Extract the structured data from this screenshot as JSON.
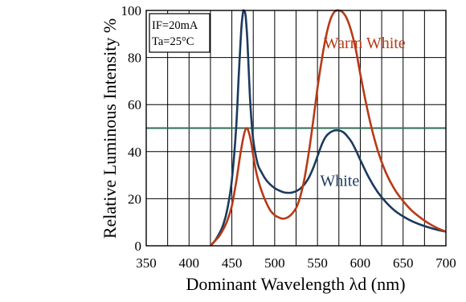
{
  "chart_data": {
    "type": "line",
    "title": "",
    "xlabel": "Dominant Wavelength λd (nm)",
    "ylabel": "Relative Luminous Intensity %",
    "xlim": [
      350,
      700
    ],
    "ylim": [
      0,
      100
    ],
    "x_ticks": [
      350,
      400,
      450,
      500,
      550,
      600,
      650,
      700
    ],
    "y_ticks": [
      0,
      20,
      40,
      60,
      80,
      100
    ],
    "x_grid_step": 25,
    "grid": true,
    "conditions": [
      "IF=20mA",
      "Ta=25°C"
    ],
    "reference_lines": [
      {
        "y": 50,
        "color": "#2e6e55"
      }
    ],
    "series": [
      {
        "name": "White",
        "color": "#1c3a5e",
        "points": [
          [
            425,
            0
          ],
          [
            430,
            2
          ],
          [
            435,
            5
          ],
          [
            440,
            9
          ],
          [
            445,
            16
          ],
          [
            450,
            28
          ],
          [
            455,
            50
          ],
          [
            458,
            72
          ],
          [
            461,
            92
          ],
          [
            463,
            99
          ],
          [
            464,
            100
          ],
          [
            466,
            98
          ],
          [
            468,
            88
          ],
          [
            470,
            72
          ],
          [
            472,
            58
          ],
          [
            475,
            45
          ],
          [
            480,
            35
          ],
          [
            485,
            31
          ],
          [
            490,
            28
          ],
          [
            495,
            26
          ],
          [
            500,
            24.5
          ],
          [
            505,
            23.5
          ],
          [
            510,
            22.8
          ],
          [
            515,
            22.5
          ],
          [
            520,
            22.6
          ],
          [
            525,
            23.2
          ],
          [
            530,
            24.3
          ],
          [
            535,
            26.2
          ],
          [
            540,
            29
          ],
          [
            545,
            33
          ],
          [
            550,
            38
          ],
          [
            555,
            43
          ],
          [
            560,
            46.5
          ],
          [
            565,
            48.2
          ],
          [
            570,
            49
          ],
          [
            575,
            49
          ],
          [
            580,
            48.3
          ],
          [
            585,
            46.5
          ],
          [
            590,
            44
          ],
          [
            595,
            40.5
          ],
          [
            600,
            36.5
          ],
          [
            610,
            29
          ],
          [
            620,
            23
          ],
          [
            630,
            18.5
          ],
          [
            640,
            15
          ],
          [
            650,
            12.5
          ],
          [
            660,
            10.5
          ],
          [
            670,
            9
          ],
          [
            680,
            7.8
          ],
          [
            690,
            6.8
          ],
          [
            700,
            6
          ]
        ]
      },
      {
        "name": "Warm White",
        "color": "#b83a18",
        "points": [
          [
            425,
            0
          ],
          [
            430,
            2
          ],
          [
            435,
            4
          ],
          [
            440,
            7
          ],
          [
            445,
            11
          ],
          [
            450,
            17
          ],
          [
            455,
            27
          ],
          [
            460,
            39
          ],
          [
            464,
            47
          ],
          [
            467,
            50
          ],
          [
            470,
            48
          ],
          [
            473,
            43
          ],
          [
            476,
            36
          ],
          [
            480,
            29
          ],
          [
            485,
            23
          ],
          [
            490,
            18.5
          ],
          [
            495,
            15
          ],
          [
            500,
            13
          ],
          [
            505,
            12
          ],
          [
            510,
            11.5
          ],
          [
            515,
            12
          ],
          [
            520,
            13.5
          ],
          [
            525,
            16
          ],
          [
            530,
            21
          ],
          [
            535,
            29
          ],
          [
            540,
            40
          ],
          [
            545,
            53
          ],
          [
            550,
            67
          ],
          [
            555,
            79
          ],
          [
            560,
            89
          ],
          [
            565,
            96
          ],
          [
            570,
            99.5
          ],
          [
            575,
            100
          ],
          [
            580,
            99
          ],
          [
            585,
            96
          ],
          [
            590,
            90.5
          ],
          [
            595,
            83
          ],
          [
            600,
            73
          ],
          [
            610,
            55
          ],
          [
            620,
            41
          ],
          [
            630,
            31
          ],
          [
            640,
            24
          ],
          [
            650,
            19
          ],
          [
            660,
            15
          ],
          [
            670,
            12
          ],
          [
            680,
            9.5
          ],
          [
            690,
            7.5
          ],
          [
            700,
            6
          ]
        ]
      }
    ]
  }
}
